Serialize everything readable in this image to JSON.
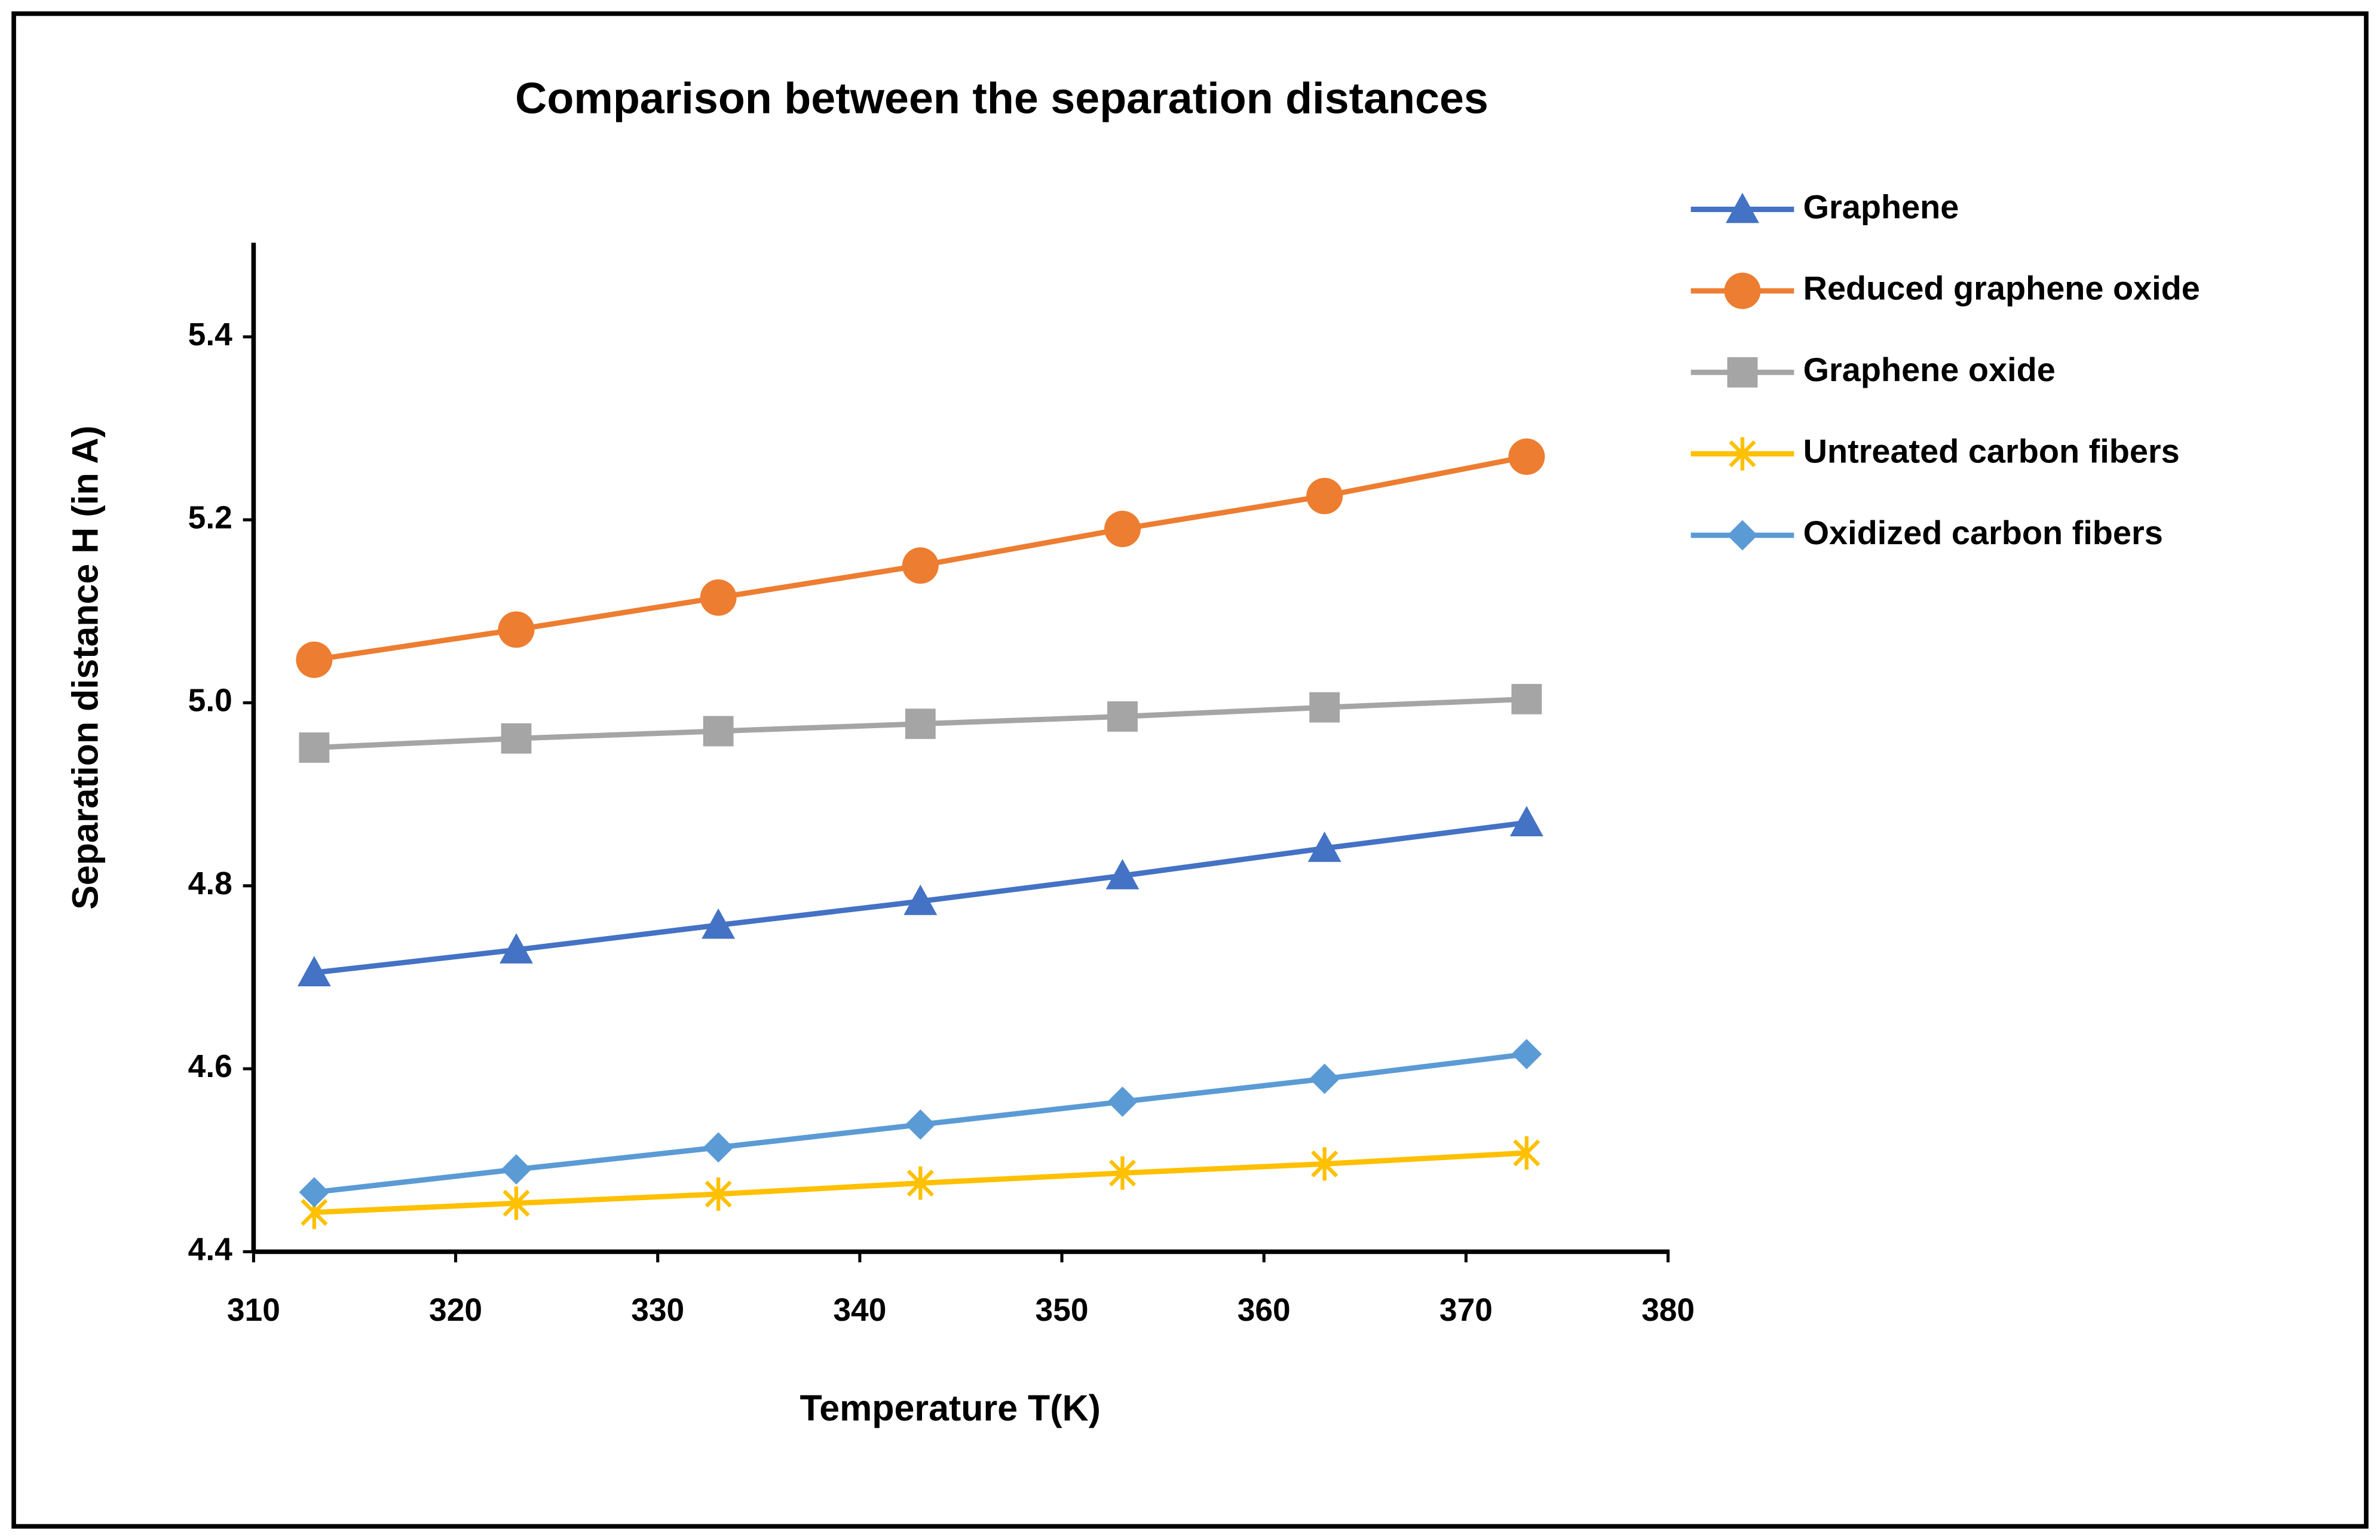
{
  "chart_data": {
    "type": "line",
    "title": "Comparison between the separation distances",
    "x_label": "Temperature T(K)",
    "y_label": "Separation distance H (in A)",
    "x": [
      313,
      323,
      333,
      343,
      353,
      363,
      373
    ],
    "xlim": [
      310,
      380
    ],
    "xticks": [
      310,
      320,
      330,
      340,
      350,
      360,
      370,
      380
    ],
    "ylim": [
      4.4,
      5.5
    ],
    "yticks": [
      4.4,
      4.6,
      4.8,
      {
        "value": 5,
        "label": "5.0"
      },
      5.2,
      5.4
    ],
    "grid": false,
    "legend": "right",
    "series": [
      {
        "name": "Graphene",
        "color": "#4472c4",
        "marker": "triangle",
        "values": [
          4.705,
          4.73,
          4.757,
          4.783,
          4.811,
          4.841,
          4.869
        ]
      },
      {
        "name": "Reduced graphene oxide",
        "color": "#ed7d31",
        "marker": "circle",
        "values": [
          5.047,
          5.08,
          5.115,
          5.15,
          5.19,
          5.226,
          5.269
        ]
      },
      {
        "name": "Graphene oxide",
        "color": "#a5a5a5",
        "marker": "square",
        "values": [
          4.951,
          4.961,
          4.969,
          4.977,
          4.985,
          4.995,
          5.004
        ]
      },
      {
        "name": "Untreated carbon fibers",
        "color": "#ffc000",
        "marker": "star",
        "values": [
          4.443,
          4.453,
          4.463,
          4.475,
          4.486,
          4.496,
          4.508
        ]
      },
      {
        "name": "Oxidized carbon fibers",
        "color": "#5b9bd5",
        "marker": "diamond",
        "values": [
          4.465,
          4.49,
          4.514,
          4.539,
          4.564,
          4.589,
          4.616
        ]
      }
    ]
  }
}
